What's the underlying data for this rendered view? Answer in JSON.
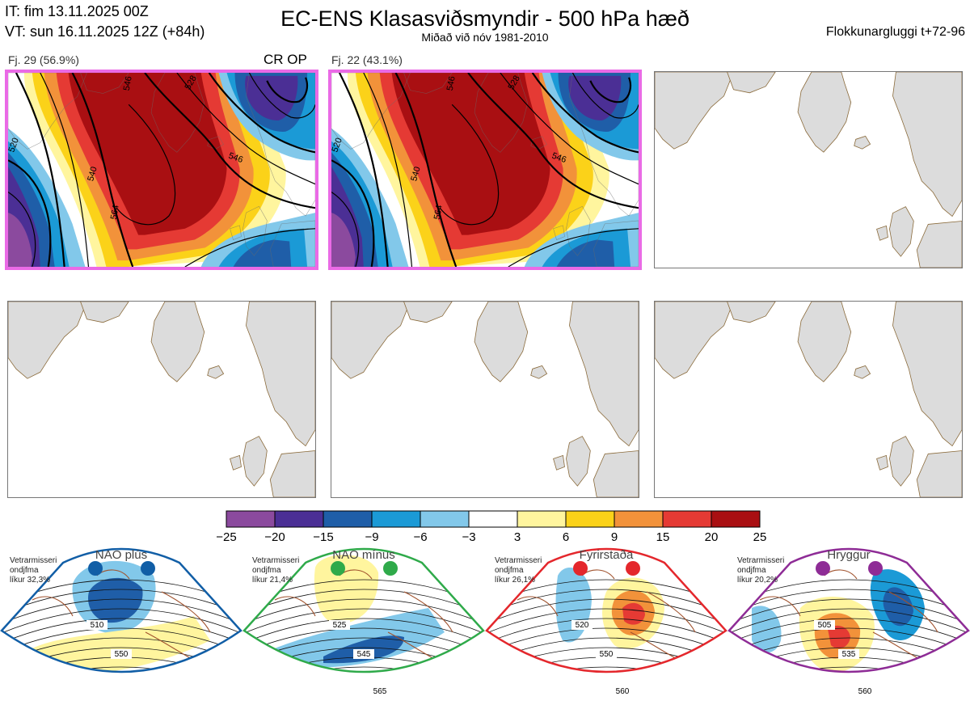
{
  "header": {
    "it": "IT: fim 13.11.2025 00Z",
    "vt": "VT: sun 16.11.2025 12Z  (+84h)",
    "title": "EC-ENS Klasasviðsmyndir - 500 hPa hæð",
    "subtitle": "Miðað við nóv 1981-2010",
    "window": "Flokkunargluggi t+72-96"
  },
  "clusters": [
    {
      "label": "Fj. 29 (56.9%)",
      "tag": "CR OP",
      "highlighted": true,
      "contours": [
        "546",
        "528",
        "520",
        "546",
        "540",
        "564"
      ]
    },
    {
      "label": "Fj. 22 (43.1%)",
      "tag": "",
      "highlighted": true,
      "contours": [
        "546",
        "528",
        "520",
        "546",
        "540",
        "564"
      ]
    },
    {
      "label": "",
      "tag": "",
      "highlighted": false
    },
    {
      "label": "",
      "tag": "",
      "highlighted": false
    },
    {
      "label": "",
      "tag": "",
      "highlighted": false
    },
    {
      "label": "",
      "tag": "",
      "highlighted": false
    }
  ],
  "colorbar": {
    "ticks": [
      "−25",
      "−20",
      "−15",
      "−9",
      "−6",
      "−3",
      "3",
      "6",
      "9",
      "15",
      "20",
      "25"
    ],
    "colors": [
      "#8b4a9e",
      "#4b2f95",
      "#1f5ea8",
      "#1b9ad6",
      "#82c8ea",
      "#ffffff",
      "#fff59e",
      "#fbd219",
      "#f2923a",
      "#e53a34",
      "#a90f12"
    ]
  },
  "regimes": [
    {
      "name": "NAO plús",
      "stat": [
        "Vetrarmisseri",
        "ondjfma",
        "líkur 32,3%"
      ],
      "color": "#115ea6",
      "contours": [
        "510",
        "550"
      ]
    },
    {
      "name": "NAO mínus",
      "stat": [
        "Vetrarmisseri",
        "ondjfma",
        "líkur 21,4%"
      ],
      "color": "#2faa4a",
      "contours": [
        "525",
        "545",
        "565"
      ]
    },
    {
      "name": "Fyrirstaða",
      "stat": [
        "Vetrarmisseri",
        "ondjfma",
        "líkur 26,1%"
      ],
      "color": "#e4272c",
      "contours": [
        "520",
        "550",
        "560"
      ]
    },
    {
      "name": "Hryggur",
      "stat": [
        "Vetrarmisseri",
        "ondjfma",
        "líkur 20,2%"
      ],
      "color": "#8e2c96",
      "contours": [
        "505",
        "535",
        "560"
      ]
    }
  ],
  "chart_data": {
    "type": "heatmap",
    "title": "EC-ENS Klasasviðsmyndir - 500 hPa hæð",
    "subtitle": "Miðað við nóv 1981-2010",
    "variable": "500 hPa height anomaly (dam), shaded; contours 500 hPa height (dam)",
    "colorbar_boundaries": [
      -25,
      -20,
      -15,
      -9,
      -6,
      -3,
      3,
      6,
      9,
      15,
      20,
      25
    ],
    "series": [
      {
        "name": "Fj. 29",
        "members": 29,
        "percent": 56.9
      },
      {
        "name": "Fj. 22",
        "members": 22,
        "percent": 43.1
      }
    ],
    "regime_probabilities": [
      {
        "name": "NAO plús",
        "percent": 32.3
      },
      {
        "name": "NAO mínus",
        "percent": 21.4
      },
      {
        "name": "Fyrirstaða",
        "percent": 26.1
      },
      {
        "name": "Hryggur",
        "percent": 20.2
      }
    ]
  }
}
